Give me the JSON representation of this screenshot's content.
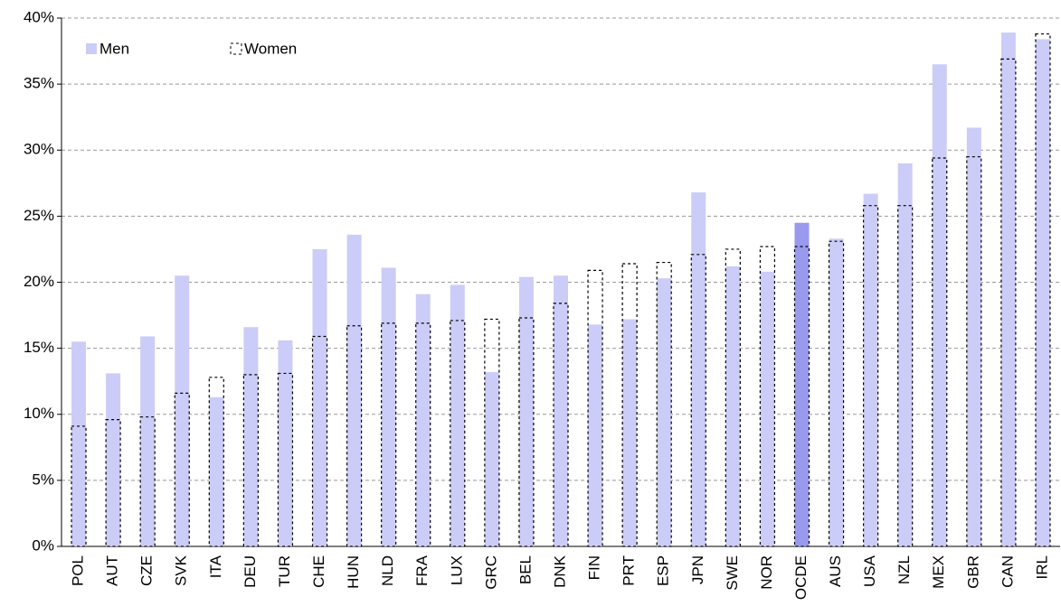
{
  "chart_data": {
    "type": "bar",
    "categories": [
      "POL",
      "AUT",
      "CZE",
      "SVK",
      "ITA",
      "DEU",
      "TUR",
      "CHE",
      "HUN",
      "NLD",
      "FRA",
      "LUX",
      "GRC",
      "BEL",
      "DNK",
      "FIN",
      "PRT",
      "ESP",
      "JPN",
      "SWE",
      "NOR",
      "OCDE",
      "AUS",
      "USA",
      "NZL",
      "MEX",
      "GBR",
      "CAN",
      "IRL"
    ],
    "series": [
      {
        "name": "Men",
        "color": "#ccccf8",
        "colors": [
          "#ccccf8",
          "#ccccf8",
          "#ccccf8",
          "#ccccf8",
          "#ccccf8",
          "#ccccf8",
          "#ccccf8",
          "#ccccf8",
          "#ccccf8",
          "#ccccf8",
          "#ccccf8",
          "#ccccf8",
          "#ccccf8",
          "#ccccf8",
          "#ccccf8",
          "#ccccf8",
          "#ccccf8",
          "#ccccf8",
          "#ccccf8",
          "#ccccf8",
          "#ccccf8",
          "#9999ee",
          "#ccccf8",
          "#ccccf8",
          "#ccccf8",
          "#ccccf8",
          "#ccccf8",
          "#ccccf8",
          "#ccccf8"
        ],
        "values": [
          15.5,
          13.1,
          15.9,
          20.5,
          11.3,
          16.6,
          15.6,
          22.5,
          23.6,
          21.1,
          19.1,
          19.8,
          13.2,
          20.4,
          20.5,
          16.8,
          17.2,
          20.3,
          26.8,
          21.2,
          20.8,
          24.5,
          23.3,
          26.7,
          29.0,
          36.5,
          31.7,
          38.9,
          38.4
        ]
      },
      {
        "name": "Women",
        "color": "#000000",
        "style": "dashed-outline",
        "values": [
          9.1,
          9.6,
          9.8,
          11.6,
          12.8,
          13.0,
          13.1,
          15.9,
          16.7,
          16.9,
          16.9,
          17.1,
          17.2,
          17.3,
          18.4,
          20.9,
          21.4,
          21.5,
          22.1,
          22.5,
          22.7,
          22.7,
          23.1,
          25.8,
          25.8,
          29.4,
          29.5,
          36.9,
          38.8
        ]
      }
    ],
    "ylim": [
      0,
      40
    ],
    "yticks": [
      {
        "value": 0,
        "label": "0%"
      },
      {
        "value": 5,
        "label": "5%"
      },
      {
        "value": 10,
        "label": "10%"
      },
      {
        "value": 15,
        "label": "15%"
      },
      {
        "value": 20,
        "label": "20%"
      },
      {
        "value": 25,
        "label": "25%"
      },
      {
        "value": 30,
        "label": "30%"
      },
      {
        "value": 35,
        "label": "35%"
      },
      {
        "value": 40,
        "label": "40%"
      }
    ],
    "grid": true,
    "legend": "top-left"
  }
}
